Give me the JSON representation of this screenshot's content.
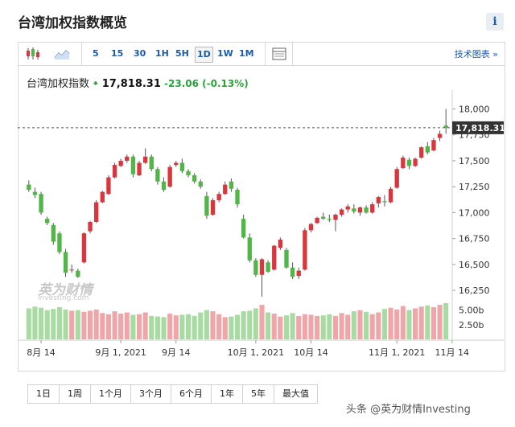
{
  "page": {
    "title": "台湾加权指数概览",
    "info_label": "i"
  },
  "toolbar": {
    "timeframes": [
      "5",
      "15",
      "30",
      "1H",
      "5H",
      "1D",
      "1W",
      "1M"
    ],
    "active_timeframe": "1D",
    "tech_chart_link": "技术图表 »",
    "icons": [
      "candlestick-icon",
      "area-chart-icon",
      "grid-table-icon"
    ]
  },
  "legend": {
    "name": "台湾加权指数",
    "price": "17,818.31",
    "change": "-23.06",
    "change_pct": "(-0.13%)"
  },
  "watermark_logo": {
    "brand": "英为财情",
    "sub": "Investing.com"
  },
  "range_buttons": [
    "1日",
    "1周",
    "1个月",
    "3个月",
    "6个月",
    "1年",
    "5年",
    "最大值"
  ],
  "source_watermark": "头条 @英为财情Investing",
  "colors": {
    "up": "#d9363e",
    "down": "#52b548",
    "up_vol": "#f0a5a8",
    "down_vol": "#a7dba2",
    "accent": "#1a5aa6"
  },
  "chart_data": {
    "type": "candlestick",
    "y_ticks": [
      "18,000",
      "17,750",
      "17,500",
      "17,250",
      "17,000",
      "16,750",
      "16,500",
      "16,250"
    ],
    "ylim": [
      16150,
      18120
    ],
    "x_ticks": [
      {
        "label": "8月 14",
        "index": 2
      },
      {
        "label": "9月 1, 2021",
        "index": 15
      },
      {
        "label": "9月 14",
        "index": 24
      },
      {
        "label": "10月 1, 2021",
        "index": 37
      },
      {
        "label": "10月 14",
        "index": 46
      },
      {
        "label": "11月 1, 2021",
        "index": 60
      },
      {
        "label": "11月 14",
        "index": 69
      }
    ],
    "last_price": 17818.31,
    "last_price_label": "17,818.31",
    "volume_ticks": [
      "5.00b",
      "2.50b"
    ],
    "volume_max": 6.6,
    "ohlc": [
      [
        17270,
        17310,
        17200,
        17220
      ],
      [
        17200,
        17240,
        17140,
        17170
      ],
      [
        17180,
        17200,
        16980,
        17000
      ],
      [
        16940,
        16960,
        16880,
        16900
      ],
      [
        16880,
        16900,
        16690,
        16720
      ],
      [
        16800,
        16820,
        16600,
        16620
      ],
      [
        16620,
        16650,
        16380,
        16420
      ],
      [
        16450,
        16500,
        16420,
        16450
      ],
      [
        16440,
        16460,
        16370,
        16380
      ],
      [
        16520,
        16810,
        16510,
        16800
      ],
      [
        16820,
        16920,
        16800,
        16910
      ],
      [
        16910,
        17120,
        16900,
        17100
      ],
      [
        17100,
        17210,
        17090,
        17200
      ],
      [
        17180,
        17360,
        17170,
        17340
      ],
      [
        17340,
        17480,
        17330,
        17460
      ],
      [
        17450,
        17520,
        17440,
        17500
      ],
      [
        17500,
        17560,
        17480,
        17540
      ],
      [
        17540,
        17560,
        17340,
        17370
      ],
      [
        17360,
        17500,
        17350,
        17480
      ],
      [
        17480,
        17620,
        17470,
        17540
      ],
      [
        17540,
        17560,
        17400,
        17420
      ],
      [
        17420,
        17440,
        17270,
        17300
      ],
      [
        17300,
        17340,
        17200,
        17220
      ],
      [
        17250,
        17460,
        17240,
        17440
      ],
      [
        17460,
        17500,
        17440,
        17480
      ],
      [
        17480,
        17520,
        17380,
        17400
      ],
      [
        17400,
        17420,
        17340,
        17360
      ],
      [
        17360,
        17380,
        17280,
        17300
      ],
      [
        17300,
        17320,
        17230,
        17250
      ],
      [
        17160,
        17200,
        16940,
        16970
      ],
      [
        16980,
        17140,
        16970,
        17120
      ],
      [
        17120,
        17200,
        17100,
        17180
      ],
      [
        17180,
        17300,
        17170,
        17270
      ],
      [
        17300,
        17330,
        17200,
        17230
      ],
      [
        17220,
        17240,
        17050,
        17080
      ],
      [
        16940,
        16980,
        16750,
        16760
      ],
      [
        16760,
        16800,
        16520,
        16540
      ],
      [
        16540,
        16560,
        16380,
        16400
      ],
      [
        16400,
        16560,
        16190,
        16550
      ],
      [
        16520,
        16540,
        16420,
        16430
      ],
      [
        16450,
        16690,
        16440,
        16680
      ],
      [
        16660,
        16760,
        16640,
        16740
      ],
      [
        16640,
        16660,
        16460,
        16470
      ],
      [
        16470,
        16520,
        16360,
        16380
      ],
      [
        16390,
        16470,
        16360,
        16440
      ],
      [
        16450,
        16850,
        16440,
        16830
      ],
      [
        16830,
        16900,
        16810,
        16890
      ],
      [
        16900,
        16960,
        16890,
        16950
      ],
      [
        16960,
        17000,
        16930,
        16940
      ],
      [
        16940,
        16980,
        16910,
        16930
      ],
      [
        16930,
        16990,
        16820,
        16980
      ],
      [
        16980,
        17040,
        16960,
        17030
      ],
      [
        17030,
        17080,
        17000,
        17060
      ],
      [
        17040,
        17080,
        16990,
        17010
      ],
      [
        17000,
        17060,
        16970,
        17050
      ],
      [
        17050,
        17070,
        16990,
        17000
      ],
      [
        17000,
        17100,
        16990,
        17080
      ],
      [
        17090,
        17160,
        17050,
        17150
      ],
      [
        17110,
        17170,
        17060,
        17100
      ],
      [
        17100,
        17250,
        17090,
        17230
      ],
      [
        17240,
        17440,
        17230,
        17420
      ],
      [
        17430,
        17550,
        17420,
        17530
      ],
      [
        17510,
        17530,
        17420,
        17450
      ],
      [
        17450,
        17530,
        17440,
        17520
      ],
      [
        17530,
        17640,
        17520,
        17630
      ],
      [
        17640,
        17680,
        17560,
        17580
      ],
      [
        17600,
        17720,
        17590,
        17700
      ],
      [
        17720,
        17790,
        17690,
        17760
      ],
      [
        17840,
        18000,
        17760,
        17818.31
      ]
    ],
    "volume": [
      5.3,
      5.6,
      5.4,
      5.0,
      5.2,
      5.5,
      5.1,
      4.9,
      5.0,
      4.7,
      4.9,
      5.1,
      4.5,
      4.3,
      4.8,
      4.4,
      4.6,
      4.2,
      4.3,
      4.6,
      4.0,
      3.9,
      3.8,
      4.4,
      4.1,
      4.2,
      4.3,
      4.0,
      4.6,
      5.0,
      4.8,
      4.3,
      3.8,
      3.9,
      4.2,
      4.8,
      4.9,
      5.3,
      5.9,
      4.6,
      4.4,
      3.9,
      4.1,
      4.5,
      4.0,
      4.3,
      4.2,
      4.0,
      4.1,
      4.3,
      4.0,
      4.5,
      4.2,
      4.8,
      5.0,
      4.7,
      4.3,
      4.6,
      5.2,
      5.4,
      5.1,
      5.7,
      5.0,
      5.3,
      5.6,
      5.8,
      5.5,
      5.9,
      6.2
    ]
  }
}
